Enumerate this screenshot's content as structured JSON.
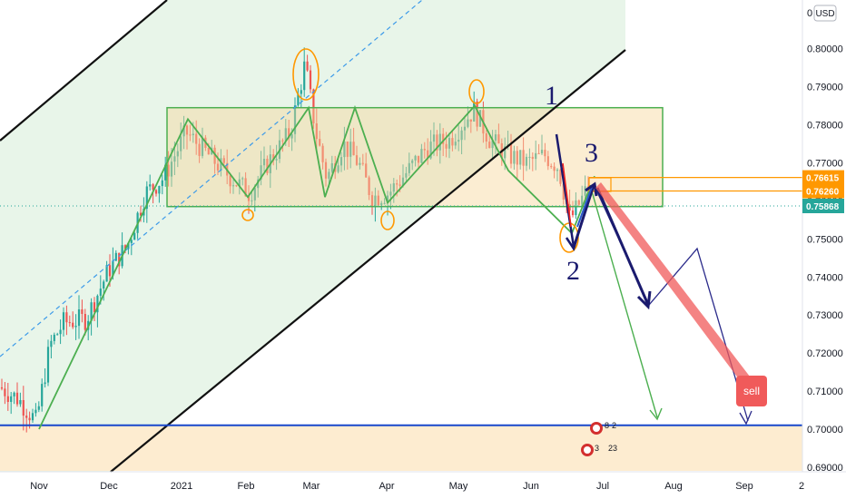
{
  "currency": "USD",
  "y_top_label": "0",
  "x_right_label": "2",
  "colors": {
    "up": "#26a69a",
    "down": "#ef5350",
    "channel_fill": "#e8f5e9",
    "box_fill": "#fde9c9",
    "green_line": "#4caf50",
    "orange": "#ff9800",
    "navy": "#1a1a6e",
    "blue_line": "#1848cc",
    "sell": "#f05a5a"
  },
  "chart_data": {
    "type": "candlestick",
    "x_ticks": [
      "Nov",
      "Dec",
      "2021",
      "Feb",
      "Mar",
      "Apr",
      "May",
      "Jun",
      "Jul",
      "Aug",
      "Sep"
    ],
    "y_ticks": [
      "0.80000",
      "0.79000",
      "0.78000",
      "0.77000",
      "0.76000",
      "0.75000",
      "0.74000",
      "0.73000",
      "0.72000",
      "0.71000",
      "0.70000",
      "0.69000"
    ],
    "ylim": [
      0.6888,
      0.8128
    ],
    "price_labels": [
      {
        "text": "0.76615",
        "value": 0.76615,
        "color": "#ff9800"
      },
      {
        "text": "0.76260",
        "value": 0.7626,
        "color": "#ff9800"
      },
      {
        "text": "0.75868",
        "value": 0.75868,
        "color": "#26a69a"
      }
    ],
    "support_level": 0.701,
    "range_box": {
      "top": 0.7845,
      "bottom": 0.7585
    },
    "zigzag": [
      0.7,
      0.7815,
      0.767,
      0.7805,
      0.7595,
      0.7845,
      0.761,
      0.785,
      0.759,
      0.7845,
      0.7665,
      0.7515,
      0.7655
    ],
    "annotations": [
      "1",
      "2",
      "3",
      "sell"
    ],
    "event_badges": [
      "8",
      "2",
      "3",
      "23"
    ]
  }
}
